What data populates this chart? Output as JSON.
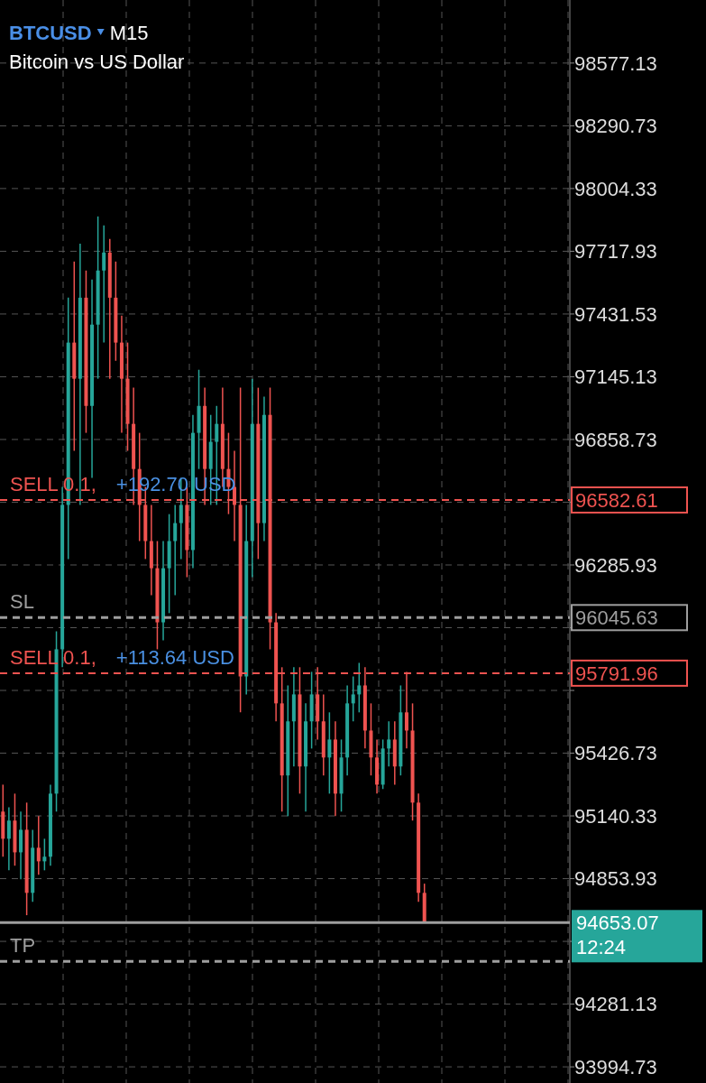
{
  "chart_data": {
    "type": "candlestick",
    "title": "BTCUSD",
    "subtitle": "Bitcoin vs US Dollar",
    "annotations": [
      "M15",
      {
        "text": "SELL 0.1,",
        "y": 96582.61
      },
      {
        "text": "+192.70 USD",
        "y": 96582.61
      },
      {
        "text": "SL",
        "y": 96045.63
      },
      {
        "text": "SELL 0.1,",
        "y": 95791.96
      },
      {
        "text": "+113.64 USD",
        "y": 95791.96
      },
      "12:24",
      {
        "text": "TP",
        "y": 94476
      }
    ],
    "categories": [
      null,
      null,
      null,
      null,
      null,
      null,
      null,
      null,
      null,
      null,
      null,
      null,
      null,
      null,
      null,
      null,
      null,
      null,
      null,
      null,
      null,
      null,
      null,
      null,
      null,
      null,
      null,
      null,
      null,
      null,
      null,
      null,
      null,
      null,
      null,
      null,
      null,
      null,
      null,
      null,
      null,
      null,
      null,
      null,
      null,
      null,
      null,
      null,
      null,
      null,
      null,
      null,
      null,
      null,
      null,
      null,
      null,
      null,
      null,
      null,
      null,
      null,
      null,
      null,
      null,
      null,
      null,
      null,
      null,
      null,
      null,
      null,
      null,
      null,
      null,
      null,
      null,
      null,
      null,
      null,
      null,
      null,
      null,
      null,
      null,
      null,
      null,
      null,
      null,
      null,
      null,
      null,
      null,
      null,
      null,
      null
    ],
    "ohlc": [
      [
        95160,
        95283,
        94954,
        95036
      ],
      [
        95036,
        95180,
        94892,
        95119
      ],
      [
        95119,
        95242,
        94913,
        94974
      ],
      [
        94974,
        95160,
        94851,
        95077
      ],
      [
        95077,
        95201,
        94687,
        94789
      ],
      [
        94789,
        95077,
        94748,
        94995
      ],
      [
        94995,
        95139,
        94872,
        94933
      ],
      [
        94933,
        95036,
        94892,
        94954
      ],
      [
        94954,
        95283,
        94913,
        95242
      ],
      [
        95242,
        95983,
        95160,
        95901
      ],
      [
        95901,
        96642,
        95819,
        96560
      ],
      [
        96560,
        97506,
        96313,
        97301
      ],
      [
        97301,
        97671,
        96807,
        97136
      ],
      [
        97136,
        97753,
        96560,
        97506
      ],
      [
        97506,
        97630,
        96889,
        97012
      ],
      [
        97012,
        97589,
        96683,
        97383
      ],
      [
        97383,
        97877,
        97136,
        97630
      ],
      [
        97630,
        97836,
        97301,
        97712
      ],
      [
        97712,
        97774,
        97136,
        97506
      ],
      [
        97506,
        97671,
        97218,
        97301
      ],
      [
        97301,
        97424,
        96889,
        97136
      ],
      [
        97136,
        97301,
        96807,
        96930
      ],
      [
        96930,
        97095,
        96560,
        96724
      ],
      [
        96724,
        96889,
        96395,
        96560
      ],
      [
        96560,
        96642,
        96313,
        96395
      ],
      [
        96395,
        96560,
        96148,
        96271
      ],
      [
        96271,
        96395,
        95901,
        96024
      ],
      [
        96024,
        96395,
        95942,
        96271
      ],
      [
        96271,
        96518,
        96066,
        96395
      ],
      [
        96395,
        96560,
        96148,
        96477
      ],
      [
        96477,
        96683,
        96313,
        96560
      ],
      [
        96560,
        96642,
        96230,
        96354
      ],
      [
        96354,
        96971,
        96271,
        96889
      ],
      [
        96889,
        97177,
        96724,
        97012
      ],
      [
        97012,
        97095,
        96560,
        96724
      ],
      [
        96724,
        96971,
        96560,
        96848
      ],
      [
        96848,
        97012,
        96560,
        96930
      ],
      [
        96930,
        97095,
        96642,
        96724
      ],
      [
        96724,
        96889,
        96518,
        96642
      ],
      [
        96642,
        96807,
        96395,
        96560
      ],
      [
        96560,
        97095,
        95613,
        95777
      ],
      [
        95777,
        96560,
        95695,
        96395
      ],
      [
        96395,
        97136,
        96230,
        96930
      ],
      [
        96930,
        97095,
        96313,
        96477
      ],
      [
        96477,
        97054,
        96395,
        96971
      ],
      [
        96971,
        97095,
        95901,
        96024
      ],
      [
        96024,
        96066,
        95572,
        95654
      ],
      [
        95654,
        95819,
        95160,
        95325
      ],
      [
        95325,
        95736,
        95139,
        95572
      ],
      [
        95572,
        95819,
        95366,
        95695
      ],
      [
        95695,
        95819,
        95242,
        95366
      ],
      [
        95366,
        95654,
        95160,
        95572
      ],
      [
        95572,
        95798,
        95448,
        95695
      ],
      [
        95695,
        95819,
        95489,
        95572
      ],
      [
        95572,
        95695,
        95325,
        95407
      ],
      [
        95407,
        95613,
        95242,
        95489
      ],
      [
        95489,
        95572,
        95139,
        95242
      ],
      [
        95242,
        95489,
        95160,
        95407
      ],
      [
        95407,
        95736,
        95325,
        95654
      ],
      [
        95654,
        95777,
        95572,
        95695
      ],
      [
        95695,
        95839,
        95613,
        95736
      ],
      [
        95736,
        95819,
        95448,
        95530
      ],
      [
        95530,
        95654,
        95325,
        95407
      ],
      [
        95407,
        95489,
        95242,
        95283
      ],
      [
        95283,
        95489,
        95263,
        95448
      ],
      [
        95448,
        95572,
        95366,
        95489
      ],
      [
        95489,
        95572,
        95283,
        95366
      ],
      [
        95366,
        95736,
        95325,
        95613
      ],
      [
        95613,
        95798,
        95448,
        95530
      ],
      [
        95530,
        95654,
        95119,
        95201
      ],
      [
        95201,
        95242,
        94748,
        94789
      ],
      [
        94789,
        94831,
        94653.07,
        94653.07
      ],
      null,
      null,
      null,
      null,
      null,
      null,
      null,
      null,
      null,
      null,
      null,
      null,
      null,
      null,
      null,
      null,
      null,
      null,
      null,
      null,
      null,
      null,
      null,
      null
    ],
    "colors": [
      "#ef5350",
      "#26a69a",
      "#ef5350",
      "#26a69a",
      "#ef5350",
      "#26a69a",
      "#ef5350",
      "#26a69a",
      "#26a69a",
      "#26a69a",
      "#26a69a",
      "#26a69a",
      "#ef5350",
      "#26a69a",
      "#ef5350",
      "#26a69a",
      "#26a69a",
      "#26a69a",
      "#ef5350",
      "#ef5350",
      "#ef5350",
      "#ef5350",
      "#ef5350",
      "#ef5350",
      "#ef5350",
      "#ef5350",
      "#ef5350",
      "#26a69a",
      "#26a69a",
      "#26a69a",
      "#26a69a",
      "#ef5350",
      "#26a69a",
      "#26a69a",
      "#ef5350",
      "#26a69a",
      "#26a69a",
      "#ef5350",
      "#ef5350",
      "#ef5350",
      "#ef5350",
      "#26a69a",
      "#26a69a",
      "#ef5350",
      "#26a69a",
      "#ef5350",
      "#ef5350",
      "#ef5350",
      "#26a69a",
      "#26a69a",
      "#ef5350",
      "#26a69a",
      "#26a69a",
      "#ef5350",
      "#ef5350",
      "#26a69a",
      "#ef5350",
      "#26a69a",
      "#26a69a",
      "#26a69a",
      "#26a69a",
      "#ef5350",
      "#ef5350",
      "#ef5350",
      "#26a69a",
      "#26a69a",
      "#ef5350",
      "#26a69a",
      "#ef5350",
      "#ef5350",
      "#ef5350",
      "#ef5350",
      null,
      null,
      null,
      null,
      null,
      null,
      null,
      null,
      null,
      null,
      null,
      null,
      null,
      null,
      null,
      null,
      null,
      null,
      null,
      null,
      null,
      null,
      null,
      null
    ],
    "ylim": [
      93921,
      98865
    ],
    "yticks": [
      98577.13,
      98290.73,
      98004.33,
      97717.93,
      97431.53,
      97145.13,
      96858.73,
      {
        "value": 96572.33,
        "label": null
      },
      96285.93,
      {
        "value": 95999.53,
        "label": null
      },
      {
        "value": 95713.13,
        "label": null
      },
      95426.73,
      95140.33,
      94853.93,
      {
        "value": 94567.53,
        "label": null
      },
      94281.13,
      93994.73
    ],
    "grid": true,
    "ref_lines": [
      {
        "axis": "y",
        "value": 96582.61,
        "label": "96582.61",
        "color": "#ef5350",
        "line_style": "dashed"
      },
      {
        "axis": "y",
        "value": 96045.63,
        "label": "96045.63",
        "color": "#9e9e9e",
        "line_style": "dashed"
      },
      {
        "axis": "y",
        "value": 95791.96,
        "label": "95791.96",
        "color": "#ef5350",
        "line_style": "dashed"
      },
      {
        "axis": "y",
        "value": 94653.07,
        "label": "94653.07",
        "color": "#9e9e9e",
        "line_style": "solid"
      },
      {
        "axis": "y",
        "value": 94476,
        "label": null,
        "color": "#9e9e9e",
        "line_style": "dashed"
      }
    ]
  }
}
